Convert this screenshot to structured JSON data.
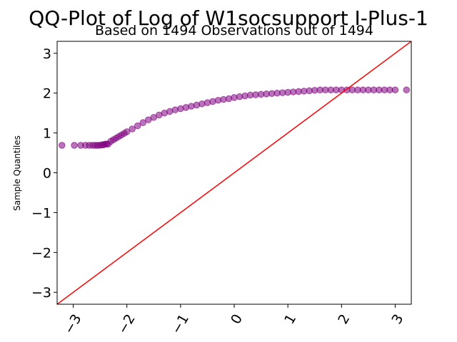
{
  "chart_data": {
    "type": "scatter",
    "title": "QQ-Plot of Log of W1socsupport I-Plus-1",
    "subtitle": "Based on 1494 Observations out of 1494",
    "xlabel": "",
    "ylabel": "Sample Quantiles",
    "xlim": [
      -3.3,
      3.3
    ],
    "ylim": [
      -3.3,
      3.3
    ],
    "xticks": [
      -3,
      -2,
      -1,
      0,
      1,
      2,
      3
    ],
    "xtick_labels": [
      "−3",
      "−2",
      "−1",
      "0",
      "1",
      "2",
      "3"
    ],
    "yticks": [
      -3,
      -2,
      -1,
      0,
      1,
      2,
      3
    ],
    "ytick_labels": [
      "−3",
      "−2",
      "−1",
      "0",
      "1",
      "2",
      "3"
    ],
    "grid": false,
    "marker_color": "#800080",
    "line_color": "#ff0000",
    "reference_line": {
      "slope": 1,
      "intercept": 0
    },
    "points": [
      [
        -3.21,
        0.69
      ],
      [
        -2.98,
        0.69
      ],
      [
        -2.86,
        0.69
      ],
      [
        -2.77,
        0.69
      ],
      [
        -2.7,
        0.69
      ],
      [
        -2.64,
        0.69
      ],
      [
        -2.59,
        0.69
      ],
      [
        -2.55,
        0.69
      ],
      [
        -2.51,
        0.69
      ],
      [
        -2.47,
        0.7
      ],
      [
        -2.44,
        0.7
      ],
      [
        -2.41,
        0.72
      ],
      [
        -2.38,
        0.72
      ],
      [
        -2.35,
        0.72
      ],
      [
        -2.3,
        0.79
      ],
      [
        -2.25,
        0.83
      ],
      [
        -2.2,
        0.87
      ],
      [
        -2.15,
        0.91
      ],
      [
        -2.1,
        0.95
      ],
      [
        -2.05,
        0.99
      ],
      [
        -2.0,
        1.03
      ],
      [
        -1.9,
        1.1
      ],
      [
        -1.8,
        1.18
      ],
      [
        -1.7,
        1.26
      ],
      [
        -1.6,
        1.33
      ],
      [
        -1.5,
        1.39
      ],
      [
        -1.4,
        1.45
      ],
      [
        -1.3,
        1.5
      ],
      [
        -1.2,
        1.54
      ],
      [
        -1.1,
        1.58
      ],
      [
        -1.0,
        1.61
      ],
      [
        -0.9,
        1.64
      ],
      [
        -0.8,
        1.67
      ],
      [
        -0.7,
        1.7
      ],
      [
        -0.6,
        1.73
      ],
      [
        -0.5,
        1.76
      ],
      [
        -0.4,
        1.79
      ],
      [
        -0.3,
        1.82
      ],
      [
        -0.2,
        1.84
      ],
      [
        -0.1,
        1.86
      ],
      [
        0.0,
        1.89
      ],
      [
        0.1,
        1.91
      ],
      [
        0.2,
        1.93
      ],
      [
        0.3,
        1.95
      ],
      [
        0.4,
        1.96
      ],
      [
        0.5,
        1.97
      ],
      [
        0.6,
        1.98
      ],
      [
        0.7,
        1.99
      ],
      [
        0.8,
        2.0
      ],
      [
        0.9,
        2.01
      ],
      [
        1.0,
        2.02
      ],
      [
        1.1,
        2.03
      ],
      [
        1.2,
        2.04
      ],
      [
        1.3,
        2.05
      ],
      [
        1.4,
        2.06
      ],
      [
        1.5,
        2.07
      ],
      [
        1.6,
        2.08
      ],
      [
        1.7,
        2.08
      ],
      [
        1.8,
        2.08
      ],
      [
        1.9,
        2.08
      ],
      [
        2.0,
        2.08
      ],
      [
        2.1,
        2.08
      ],
      [
        2.2,
        2.08
      ],
      [
        2.3,
        2.08
      ],
      [
        2.4,
        2.08
      ],
      [
        2.5,
        2.08
      ],
      [
        2.6,
        2.08
      ],
      [
        2.7,
        2.08
      ],
      [
        2.8,
        2.08
      ],
      [
        2.9,
        2.08
      ],
      [
        3.0,
        2.08
      ],
      [
        3.21,
        2.08
      ]
    ]
  }
}
